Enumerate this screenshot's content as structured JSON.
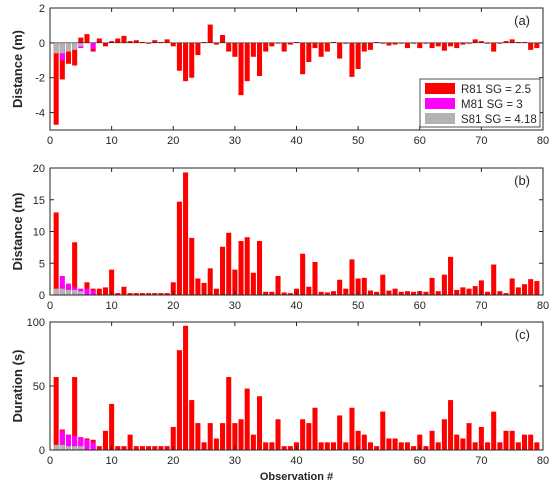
{
  "colors": {
    "R81": "#ff0000",
    "M81": "#ff00ff",
    "S81": "#b3b3b3",
    "axis": "#262626"
  },
  "chart_data": [
    {
      "type": "bar",
      "panel": "a",
      "label": "(a)",
      "ylabel": "Distance (m)",
      "xlabel": "",
      "xlim": [
        0,
        80
      ],
      "ylim": [
        -5,
        2
      ],
      "yticks": [
        "-4",
        "-2",
        "0",
        "2"
      ],
      "ytick_values": [
        -4,
        -2,
        0,
        2
      ],
      "xticks": [
        0,
        10,
        20,
        30,
        40,
        50,
        60,
        70,
        80
      ],
      "legend": {
        "placement": "right-middle",
        "entries": [
          {
            "key": "R81",
            "label": "R81 SG = 2.5"
          },
          {
            "key": "M81",
            "label": "M81 SG = 3"
          },
          {
            "key": "S81",
            "label": "S81 SG = 4.18"
          }
        ]
      },
      "series": [
        {
          "name": "R81 SG = 2.5",
          "key": "R81",
          "x": [
            1,
            2,
            3,
            4,
            5,
            6,
            7,
            8,
            9,
            10,
            11,
            12,
            13,
            14,
            15,
            16,
            17,
            18,
            19,
            20,
            21,
            22,
            23,
            24,
            25,
            26,
            27,
            28,
            29,
            30,
            31,
            32,
            33,
            34,
            35,
            36,
            37,
            38,
            39,
            40,
            41,
            42,
            43,
            44,
            45,
            46,
            47,
            48,
            49,
            50,
            51,
            52,
            53,
            54,
            55,
            56,
            57,
            58,
            59,
            60,
            61,
            62,
            63,
            64,
            65,
            66,
            67,
            68,
            69,
            70,
            71,
            72,
            73,
            74,
            75,
            76,
            77,
            78,
            79
          ],
          "values": [
            -4.7,
            -2.1,
            -1.2,
            -1.3,
            0.3,
            0.5,
            -0.5,
            0.25,
            -0.2,
            0.1,
            0.25,
            0.4,
            0.1,
            0.15,
            0.05,
            -0.05,
            0.15,
            0.05,
            0.2,
            -0.2,
            -1.6,
            -2.2,
            -2.0,
            -0.7,
            0.05,
            1.05,
            -0.1,
            0.45,
            -0.5,
            -0.8,
            -3.0,
            -2.2,
            -0.8,
            -1.9,
            -0.5,
            -0.2,
            0.0,
            -0.5,
            -0.1,
            0.05,
            -1.8,
            -1.1,
            -0.3,
            -0.8,
            -0.5,
            0.05,
            -0.9,
            -0.05,
            -1.95,
            -1.5,
            -0.5,
            -0.4,
            0.05,
            -0.05,
            -0.15,
            -0.1,
            -0.05,
            -0.3,
            -0.05,
            -0.3,
            -0.05,
            -0.3,
            -0.2,
            -0.45,
            -0.2,
            -0.3,
            -0.1,
            -0.05,
            0.2,
            0.1,
            -0.05,
            -0.5,
            -0.05,
            0.1,
            0.2,
            0.05,
            0.05,
            -0.4,
            -0.3
          ]
        },
        {
          "name": "M81 SG = 3",
          "key": "M81",
          "x": [
            2,
            5,
            7
          ],
          "values": [
            -1.0,
            -0.3,
            -0.35
          ]
        },
        {
          "name": "S81 SG = 4.18",
          "key": "S81",
          "x": [
            1,
            2,
            3,
            4,
            5
          ],
          "values": [
            -0.6,
            -0.6,
            -0.5,
            -0.4,
            -0.2
          ]
        }
      ]
    },
    {
      "type": "bar",
      "panel": "b",
      "label": "(b)",
      "ylabel": "Distance (m)",
      "xlabel": "",
      "xlim": [
        0,
        80
      ],
      "ylim": [
        0,
        20
      ],
      "yticks": [
        "0",
        "5",
        "10",
        "15",
        "20"
      ],
      "ytick_values": [
        0,
        5,
        10,
        15,
        20
      ],
      "xticks": [
        0,
        10,
        20,
        30,
        40,
        50,
        60,
        70,
        80
      ],
      "series": [
        {
          "name": "R81 SG = 2.5",
          "key": "R81",
          "x": [
            1,
            2,
            3,
            4,
            5,
            6,
            7,
            8,
            9,
            10,
            11,
            12,
            13,
            14,
            15,
            16,
            17,
            18,
            19,
            20,
            21,
            22,
            23,
            24,
            25,
            26,
            27,
            28,
            29,
            30,
            31,
            32,
            33,
            34,
            35,
            36,
            37,
            38,
            39,
            40,
            41,
            42,
            43,
            44,
            45,
            46,
            47,
            48,
            49,
            50,
            51,
            52,
            53,
            54,
            55,
            56,
            57,
            58,
            59,
            60,
            61,
            62,
            63,
            64,
            65,
            66,
            67,
            68,
            69,
            70,
            71,
            72,
            73,
            74,
            75,
            76,
            77,
            78,
            79
          ],
          "values": [
            13.0,
            1.5,
            1.5,
            8.3,
            0.8,
            2.0,
            1.0,
            1.0,
            1.2,
            4.0,
            0.3,
            1.3,
            0.3,
            0.3,
            0.3,
            0.3,
            0.3,
            0.3,
            0.3,
            2.0,
            14.7,
            19.3,
            9.0,
            2.6,
            1.9,
            4.2,
            1.0,
            7.6,
            9.8,
            4.0,
            8.5,
            9.1,
            3.5,
            8.5,
            0.5,
            0.5,
            3.0,
            0.4,
            0.3,
            1.0,
            6.5,
            1.3,
            5.2,
            0.5,
            0.4,
            0.6,
            2.4,
            1.0,
            5.6,
            2.6,
            2.7,
            0.7,
            0.5,
            3.2,
            0.7,
            1.0,
            0.5,
            0.6,
            0.5,
            0.6,
            0.5,
            2.7,
            0.6,
            3.2,
            6.0,
            0.8,
            1.2,
            1.0,
            1.4,
            2.3,
            0.5,
            4.8,
            0.6,
            0.3,
            2.6,
            1.2,
            1.7,
            2.5,
            2.2
          ]
        },
        {
          "name": "M81 SG = 3",
          "key": "M81",
          "x": [
            2,
            3,
            4,
            5,
            6,
            7
          ],
          "values": [
            3.0,
            1.8,
            1.2,
            1.0,
            1.0,
            0.7
          ]
        },
        {
          "name": "S81 SG = 4.18",
          "key": "S81",
          "x": [
            1,
            2,
            3,
            4,
            5
          ],
          "values": [
            1.0,
            1.0,
            0.8,
            0.8,
            0.6
          ]
        }
      ]
    },
    {
      "type": "bar",
      "panel": "c",
      "label": "(c)",
      "ylabel": "Duration (s)",
      "xlabel": "Observation #",
      "xlim": [
        0,
        80
      ],
      "ylim": [
        0,
        100
      ],
      "yticks": [
        "0",
        "50",
        "100"
      ],
      "ytick_values": [
        0,
        50,
        100
      ],
      "xticks": [
        0,
        10,
        20,
        30,
        40,
        50,
        60,
        70,
        80
      ],
      "series": [
        {
          "name": "R81 SG = 2.5",
          "key": "R81",
          "x": [
            1,
            2,
            3,
            4,
            5,
            6,
            7,
            8,
            9,
            10,
            11,
            12,
            13,
            14,
            15,
            16,
            17,
            18,
            19,
            20,
            21,
            22,
            23,
            24,
            25,
            26,
            27,
            28,
            29,
            30,
            31,
            32,
            33,
            34,
            35,
            36,
            37,
            38,
            39,
            40,
            41,
            42,
            43,
            44,
            45,
            46,
            47,
            48,
            49,
            50,
            51,
            52,
            53,
            54,
            55,
            56,
            57,
            58,
            59,
            60,
            61,
            62,
            63,
            64,
            65,
            66,
            67,
            68,
            69,
            70,
            71,
            72,
            73,
            74,
            75,
            76,
            77,
            78,
            79
          ],
          "values": [
            57,
            16,
            12,
            57,
            10,
            9,
            8,
            3,
            15,
            36,
            3,
            3,
            12,
            3,
            3,
            3,
            3,
            3,
            3,
            18,
            78,
            97,
            39,
            21,
            6,
            21,
            9,
            21,
            57,
            21,
            24,
            48,
            12,
            42,
            6,
            6,
            24,
            3,
            3,
            6,
            24,
            21,
            33,
            6,
            6,
            6,
            27,
            6,
            33,
            15,
            12,
            6,
            3,
            30,
            9,
            9,
            6,
            6,
            3,
            12,
            3,
            15,
            6,
            24,
            39,
            12,
            9,
            21,
            6,
            18,
            6,
            30,
            6,
            15,
            15,
            6,
            12,
            12,
            6
          ]
        },
        {
          "name": "M81 SG = 3",
          "key": "M81",
          "x": [
            2,
            3,
            4,
            5,
            6,
            7
          ],
          "values": [
            15,
            12,
            11,
            10,
            8,
            6
          ]
        },
        {
          "name": "S81 SG = 4.18",
          "key": "S81",
          "x": [
            1,
            2,
            3,
            4,
            5
          ],
          "values": [
            4,
            4,
            3,
            3,
            3
          ]
        }
      ]
    }
  ]
}
